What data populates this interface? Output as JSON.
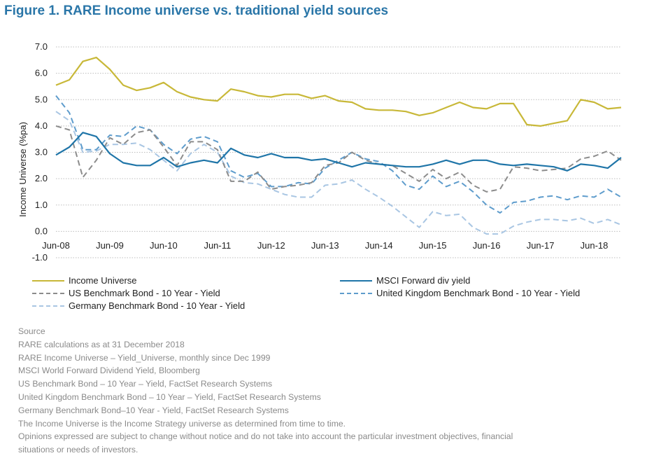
{
  "figure_title": "Figure 1. RARE Income universe vs. traditional yield sources",
  "colors": {
    "income_universe": "#c8b838",
    "msci": "#1f75a8",
    "us_bond": "#8c8c8c",
    "uk_bond": "#5e9ccc",
    "de_bond": "#a9c6e3",
    "title": "#2a76a8",
    "grid": "#bdbdbd"
  },
  "chart_data": {
    "type": "line",
    "ylabel": "Income Universe (%pa)",
    "xlabel": "",
    "ylim": [
      -1.0,
      7.0
    ],
    "yticks": [
      -1.0,
      0.0,
      1.0,
      2.0,
      3.0,
      4.0,
      5.0,
      6.0,
      7.0
    ],
    "ytick_labels": [
      "-1.0",
      "0.0",
      "1.0",
      "2.0",
      "3.0",
      "4.0",
      "5.0",
      "6.0",
      "7.0"
    ],
    "xlim": [
      "Jun-08",
      "Dec-18"
    ],
    "xtick_labels": [
      "Jun-08",
      "Jun-09",
      "Jun-10",
      "Jun-11",
      "Jun-12",
      "Jun-13",
      "Jun-14",
      "Jun-15",
      "Jun-16",
      "Jun-17",
      "Jun-18"
    ],
    "grid": "horizontal dotted",
    "legend_placement": "bottom",
    "x": [
      "Jun-08",
      "Sep-08",
      "Dec-08",
      "Mar-09",
      "Jun-09",
      "Sep-09",
      "Dec-09",
      "Mar-10",
      "Jun-10",
      "Sep-10",
      "Dec-10",
      "Mar-11",
      "Jun-11",
      "Sep-11",
      "Dec-11",
      "Mar-12",
      "Jun-12",
      "Sep-12",
      "Dec-12",
      "Mar-13",
      "Jun-13",
      "Sep-13",
      "Dec-13",
      "Mar-14",
      "Jun-14",
      "Sep-14",
      "Dec-14",
      "Mar-15",
      "Jun-15",
      "Sep-15",
      "Dec-15",
      "Mar-16",
      "Jun-16",
      "Sep-16",
      "Dec-16",
      "Mar-17",
      "Jun-17",
      "Sep-17",
      "Dec-17",
      "Mar-18",
      "Jun-18",
      "Sep-18",
      "Dec-18"
    ],
    "series": [
      {
        "name": "Income Universe",
        "style": "solid",
        "values": [
          5.55,
          5.75,
          6.45,
          6.6,
          6.15,
          5.55,
          5.35,
          5.45,
          5.65,
          5.3,
          5.1,
          5.0,
          4.95,
          5.4,
          5.3,
          5.15,
          5.1,
          5.2,
          5.2,
          5.05,
          5.15,
          4.95,
          4.9,
          4.65,
          4.6,
          4.6,
          4.55,
          4.4,
          4.5,
          4.7,
          4.9,
          4.7,
          4.65,
          4.85,
          4.85,
          4.05,
          4.0,
          4.1,
          4.2,
          5.0,
          4.9,
          4.65,
          4.7
        ]
      },
      {
        "name": "MSCI Forward div yield",
        "style": "solid",
        "values": [
          2.9,
          3.2,
          3.75,
          3.6,
          2.95,
          2.6,
          2.5,
          2.5,
          2.8,
          2.45,
          2.6,
          2.7,
          2.6,
          3.15,
          2.9,
          2.8,
          2.95,
          2.8,
          2.8,
          2.7,
          2.75,
          2.6,
          2.45,
          2.6,
          2.55,
          2.5,
          2.45,
          2.45,
          2.55,
          2.7,
          2.55,
          2.7,
          2.7,
          2.55,
          2.5,
          2.55,
          2.5,
          2.45,
          2.3,
          2.55,
          2.5,
          2.4,
          2.8
        ]
      },
      {
        "name": "US Benchmark Bond - 10 Year - Yield",
        "style": "dashed",
        "values": [
          4.0,
          3.85,
          2.05,
          2.7,
          3.55,
          3.3,
          3.75,
          3.85,
          3.2,
          2.5,
          3.4,
          3.4,
          3.1,
          1.9,
          1.9,
          2.25,
          1.6,
          1.7,
          1.75,
          1.85,
          2.5,
          2.6,
          3.0,
          2.7,
          2.55,
          2.5,
          2.2,
          1.9,
          2.35,
          2.0,
          2.25,
          1.75,
          1.5,
          1.6,
          2.45,
          2.4,
          2.3,
          2.35,
          2.4,
          2.75,
          2.85,
          3.05,
          2.7
        ]
      },
      {
        "name": "United Kingdom Benchmark Bond - 10 Year - Yield",
        "style": "dashed",
        "values": [
          5.15,
          4.5,
          3.1,
          3.1,
          3.65,
          3.6,
          4.0,
          3.85,
          3.3,
          2.95,
          3.5,
          3.6,
          3.4,
          2.3,
          2.05,
          2.2,
          1.7,
          1.7,
          1.85,
          1.8,
          2.4,
          2.7,
          3.0,
          2.75,
          2.65,
          2.3,
          1.75,
          1.6,
          2.1,
          1.7,
          1.9,
          1.5,
          1.0,
          0.7,
          1.1,
          1.15,
          1.3,
          1.35,
          1.2,
          1.35,
          1.3,
          1.6,
          1.3
        ]
      },
      {
        "name": "Germany Benchmark Bond - 10 Year - Yield",
        "style": "dashed",
        "values": [
          4.55,
          4.2,
          3.0,
          3.05,
          3.3,
          3.3,
          3.35,
          3.1,
          2.7,
          2.3,
          2.95,
          3.3,
          3.0,
          2.1,
          1.85,
          1.8,
          1.6,
          1.4,
          1.3,
          1.3,
          1.75,
          1.8,
          1.95,
          1.6,
          1.3,
          0.95,
          0.55,
          0.15,
          0.75,
          0.6,
          0.65,
          0.15,
          -0.1,
          -0.1,
          0.2,
          0.35,
          0.45,
          0.45,
          0.4,
          0.5,
          0.3,
          0.45,
          0.25
        ]
      }
    ]
  },
  "legend": [
    {
      "label": "Income Universe"
    },
    {
      "label": "MSCI Forward div yield"
    },
    {
      "label": "US Benchmark Bond - 10 Year - Yield"
    },
    {
      "label": "United Kingdom Benchmark Bond - 10 Year - Yield"
    },
    {
      "label": "Germany Benchmark Bond - 10 Year - Yield"
    }
  ],
  "notes": {
    "source_heading": "Source",
    "lines": [
      "RARE calculations as at 31 December 2018",
      "RARE Income Universe – Yield_Universe, monthly since Dec 1999",
      "MSCI World  Forward Dividend Yield, Bloomberg",
      "US Benchmark Bond – 10 Year – Yield, FactSet Research Systems",
      "United Kingdom Benchmark Bond – 10 Year – Yield, FactSet Research Systems",
      "Germany Benchmark Bond–10 Year - Yield, FactSet Research Systems",
      "The Income Universe is the Income Strategy universe as determined from time to time.",
      "Opinions expressed are subject to change without notice and do not take into account the particular investment objectives, financial",
      "situations or needs of investors."
    ]
  }
}
